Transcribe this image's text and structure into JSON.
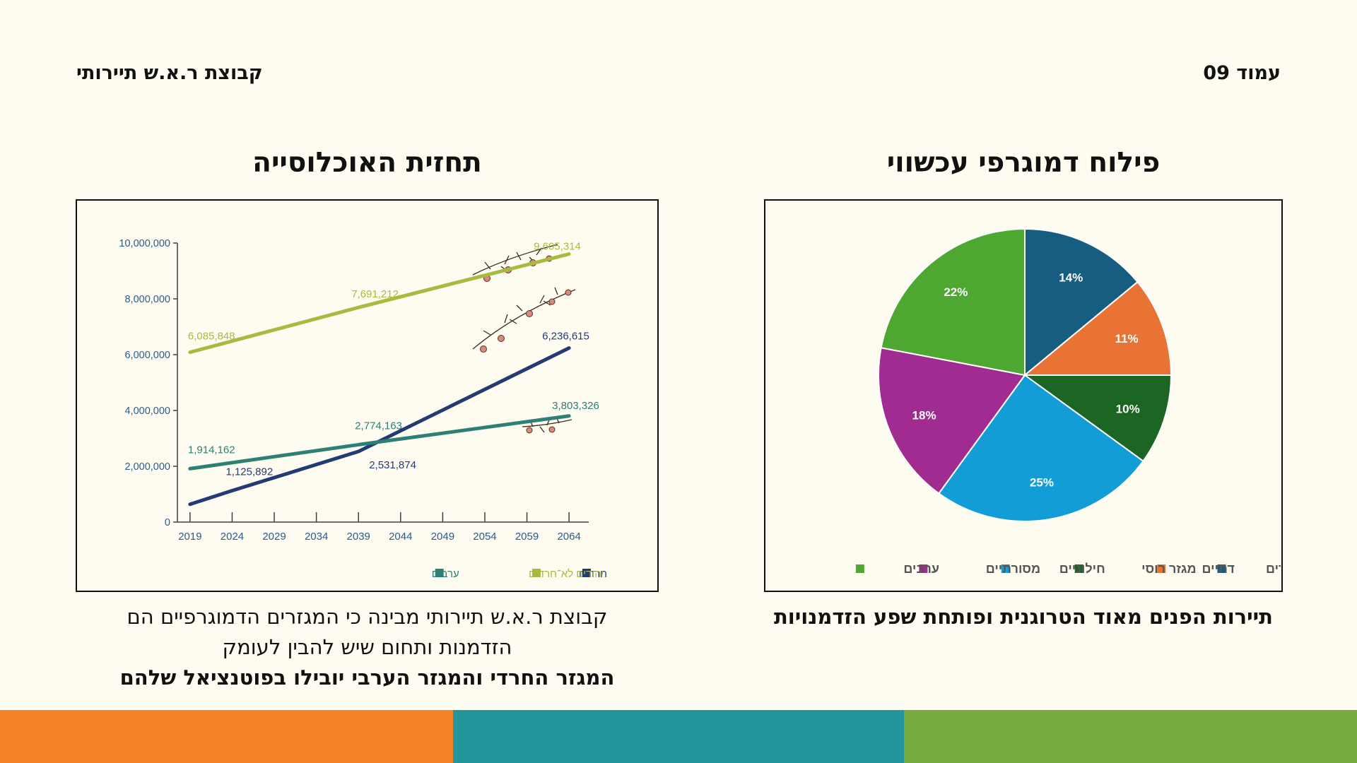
{
  "header": {
    "company": "קבוצת ר.א.ש תיירותי",
    "page_label": "עמוד 09"
  },
  "titles": {
    "pie": "פילוח דמוגרפי עכשווי",
    "line": "תחזית האוכלוסייה"
  },
  "captions": {
    "pie": "תיירות הפנים מאוד הטרוגנית ופותחת שפע הזדמנויות",
    "line_line1": "קבוצת ר.א.ש תיירותי מבינה כי המגזרים הדמוגרפיים הם",
    "line_line2": "הזדמנות ותחום שיש להבין לעומק",
    "line_bold": "המגזר החרדי והמגזר הערבי יובילו בפוטנציאל שלהם"
  },
  "colors": {
    "background": "#fefbf0",
    "bar_orange": "#f48124",
    "bar_teal": "#21979c",
    "bar_green": "#77aa3f"
  },
  "chart_data": [
    {
      "type": "pie",
      "title": "פילוח דמוגרפי עכשווי",
      "slices": [
        {
          "label": "חרדים",
          "value": 14,
          "display": "14%",
          "color": "#175d80"
        },
        {
          "label": "דתיים",
          "value": 11,
          "display": "11%",
          "color": "#e97335"
        },
        {
          "label": "מגזר רוסי",
          "value": 10,
          "display": "10%",
          "color": "#1b6623"
        },
        {
          "label": "חילוניים",
          "value": 25,
          "display": "25%",
          "color": "#139dd6"
        },
        {
          "label": "מסורתיים",
          "value": 18,
          "display": "18%",
          "color": "#a02b91"
        },
        {
          "label": "ערבים",
          "value": 22,
          "display": "22%",
          "color": "#4ea731"
        }
      ],
      "legend_position": "bottom"
    },
    {
      "type": "line",
      "title": "תחזית האוכלוסייה",
      "x": [
        2019,
        2024,
        2029,
        2034,
        2039,
        2044,
        2049,
        2054,
        2059,
        2064
      ],
      "x_tick_labels": [
        "2019",
        "2024",
        "2029",
        "2034",
        "2039",
        "2044",
        "2049",
        "2054",
        "2059",
        "2064"
      ],
      "ylim": [
        0,
        10000000
      ],
      "y_tick_labels": [
        "0",
        "2,000,000",
        "4,000,000",
        "6,000,000",
        "8,000,000",
        "10,000,000"
      ],
      "grid": false,
      "legend_position": "bottom-right",
      "series": [
        {
          "name": "יהודים לא־חרדים",
          "color": "#a9ba3e",
          "x": [
            2019,
            2039,
            2064
          ],
          "y": [
            6085848,
            7691212,
            9605314
          ],
          "labels": [
            "6,085,848",
            "7,691,212",
            "9,605,314"
          ]
        },
        {
          "name": "חרדים",
          "color": "#243a72",
          "x": [
            2019,
            2024,
            2039,
            2064
          ],
          "y": [
            640000,
            1125892,
            2531874,
            6236615
          ],
          "labels": [
            "",
            "1,125,892",
            "2,531,874",
            "6,236,615"
          ]
        },
        {
          "name": "ערבים",
          "color": "#2e7f76",
          "x": [
            2019,
            2039,
            2064
          ],
          "y": [
            1914162,
            2774163,
            3803326
          ],
          "labels": [
            "1,914,162",
            "2,774,163",
            "3,803,326"
          ]
        }
      ]
    }
  ]
}
